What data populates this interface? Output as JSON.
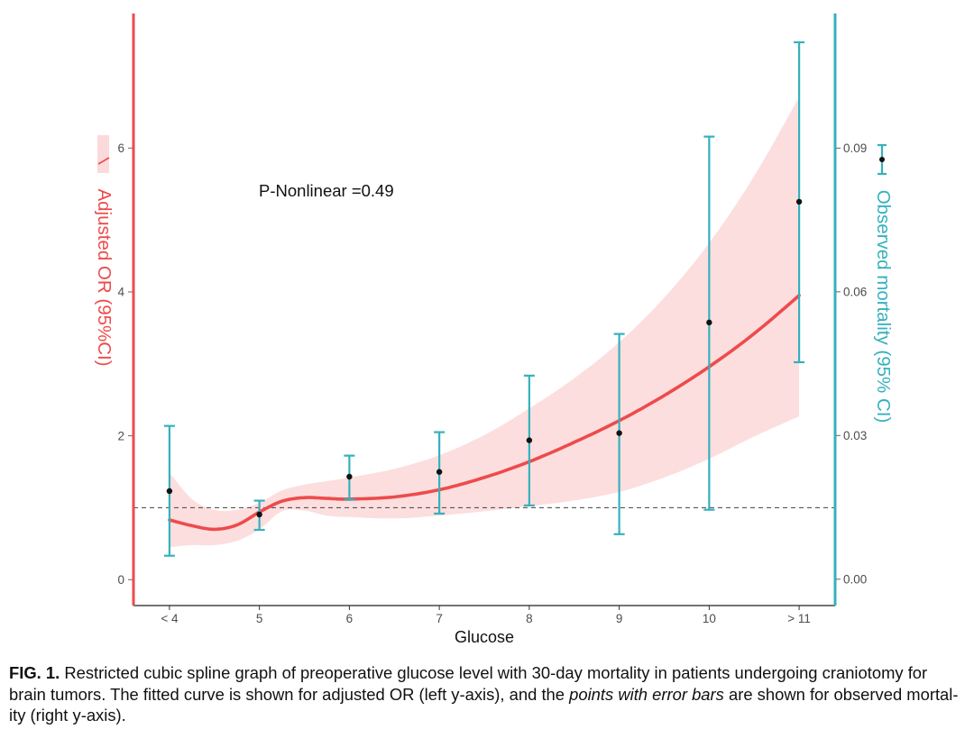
{
  "chart_data": {
    "type": "line",
    "title": "",
    "xlabel": "Glucose",
    "xlim": [
      3.6,
      11.4
    ],
    "x_ticks": {
      "values": [
        4,
        5,
        6,
        7,
        8,
        9,
        10,
        11
      ],
      "labels": [
        "< 4",
        "5",
        "6",
        "7",
        "8",
        "9",
        "10",
        "> 11"
      ]
    },
    "y_left": {
      "label": "Adjusted OR (95%CI)",
      "ylim": [
        -0.36,
        7.87
      ],
      "ticks": [
        0,
        2,
        4,
        6
      ],
      "tick_labels": [
        "0",
        "2",
        "4",
        "6"
      ]
    },
    "y_right": {
      "label": "Observed mortality (95% CI)",
      "ylim": [
        -0.0055,
        0.1181
      ],
      "ticks": [
        0,
        0.03,
        0.06,
        0.09
      ],
      "tick_labels": [
        "0.00",
        "0.03",
        "0.06",
        "0.09"
      ]
    },
    "reference_line": {
      "axis": "left",
      "y": 1,
      "style": "dashed"
    },
    "annotations": [
      {
        "text": "P-Nonlinear =0.49"
      }
    ],
    "grid": false,
    "series": [
      {
        "type": "line",
        "axis": "left",
        "ci_band": true,
        "x": [
          4,
          4.25,
          4.5,
          4.75,
          5,
          5.25,
          5.5,
          5.75,
          6,
          6.5,
          7,
          7.5,
          8,
          8.5,
          9,
          9.5,
          10,
          10.5,
          11
        ],
        "y": [
          0.83,
          0.75,
          0.7,
          0.76,
          0.94,
          1.09,
          1.14,
          1.13,
          1.12,
          1.15,
          1.25,
          1.42,
          1.64,
          1.91,
          2.21,
          2.56,
          2.96,
          3.42,
          3.95
        ],
        "lower": [
          0.45,
          0.48,
          0.48,
          0.54,
          0.7,
          0.95,
          0.96,
          0.89,
          0.87,
          0.85,
          0.89,
          0.95,
          1.02,
          1.1,
          1.22,
          1.42,
          1.68,
          1.99,
          2.27
        ],
        "upper": [
          1.49,
          1.12,
          0.97,
          0.97,
          1.07,
          1.24,
          1.32,
          1.37,
          1.42,
          1.54,
          1.73,
          2.01,
          2.38,
          2.8,
          3.3,
          3.92,
          4.68,
          5.61,
          6.71
        ]
      },
      {
        "type": "errorbar",
        "axis": "right",
        "x": [
          4,
          5,
          6,
          7,
          8,
          9,
          10,
          11
        ],
        "y": [
          0.0184,
          0.0135,
          0.0214,
          0.0224,
          0.029,
          0.0305,
          0.0536,
          0.0788
        ],
        "lower": [
          0.0049,
          0.0103,
          0.0166,
          0.0137,
          0.0154,
          0.0094,
          0.0145,
          0.0453
        ],
        "upper": [
          0.032,
          0.0164,
          0.0258,
          0.0307,
          0.0425,
          0.0512,
          0.0924,
          0.1121
        ]
      }
    ],
    "colors": {
      "fit_line": "#EE4B4B",
      "ci_band": "#FCDADB",
      "errorbar": "#35B1BC",
      "point": "#111111",
      "left_axis": "#EE4B4B",
      "right_axis": "#35B1BC",
      "x_axis": "#222222",
      "reference_line": "#555555"
    }
  },
  "caption": {
    "label": "FIG. 1.",
    "line1": "Restricted cubic spline graph of preoperative glucose level with 30-day mortality in patients undergoing craniotomy for",
    "line2_start": "brain tumors. The fitted curve is shown for adjusted OR (left y-axis), and the",
    "line2_italic": "points with error bars",
    "line2_end": "are shown for observed mortal-",
    "line3": "ity (right y-axis)."
  }
}
